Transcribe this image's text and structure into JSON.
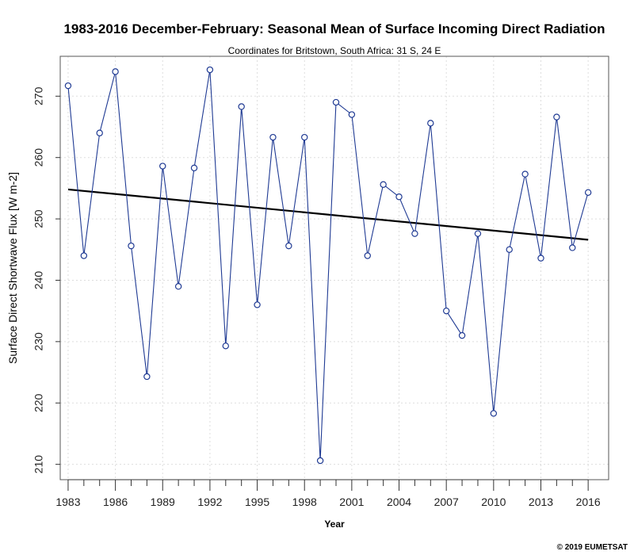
{
  "chart_data": {
    "type": "line",
    "title": "1983-2016 December-February: Seasonal Mean of Surface Incoming Direct Radiation",
    "subtitle": "Coordinates for Britstown, South Africa: 31 S, 24 E",
    "xlabel": "Year",
    "ylabel": "Surface Direct Shortwave Flux [W m-2]",
    "credit": "© 2019 EUMETSAT",
    "xlim": [
      1982.5,
      2017.3
    ],
    "ylim": [
      207.5,
      276.5
    ],
    "x_ticks": [
      1983,
      1986,
      1989,
      1992,
      1995,
      1998,
      2001,
      2004,
      2007,
      2010,
      2013,
      2016
    ],
    "y_ticks": [
      210,
      220,
      230,
      240,
      250,
      260,
      270
    ],
    "grid": true,
    "series": [
      {
        "color": "#1f3a93",
        "marker": "open-circle",
        "x": [
          1983,
          1984,
          1985,
          1986,
          1987,
          1988,
          1989,
          1990,
          1991,
          1992,
          1993,
          1994,
          1995,
          1996,
          1997,
          1998,
          1999,
          2000,
          2001,
          2002,
          2003,
          2004,
          2005,
          2006,
          2007,
          2008,
          2009,
          2010,
          2011,
          2012,
          2013,
          2014,
          2015,
          2016
        ],
        "y": [
          271.7,
          244.0,
          264.0,
          274.0,
          245.6,
          224.3,
          258.6,
          239.0,
          258.3,
          274.3,
          229.3,
          268.3,
          236.0,
          263.3,
          245.6,
          263.3,
          210.6,
          269.0,
          267.0,
          244.0,
          255.6,
          253.6,
          247.6,
          265.6,
          235.0,
          231.0,
          247.6,
          218.3,
          245.0,
          257.3,
          243.6,
          266.6,
          245.3,
          254.3
        ]
      }
    ],
    "trend": {
      "color": "#000000",
      "x": [
        1983,
        2016
      ],
      "y": [
        254.8,
        246.6
      ]
    }
  }
}
